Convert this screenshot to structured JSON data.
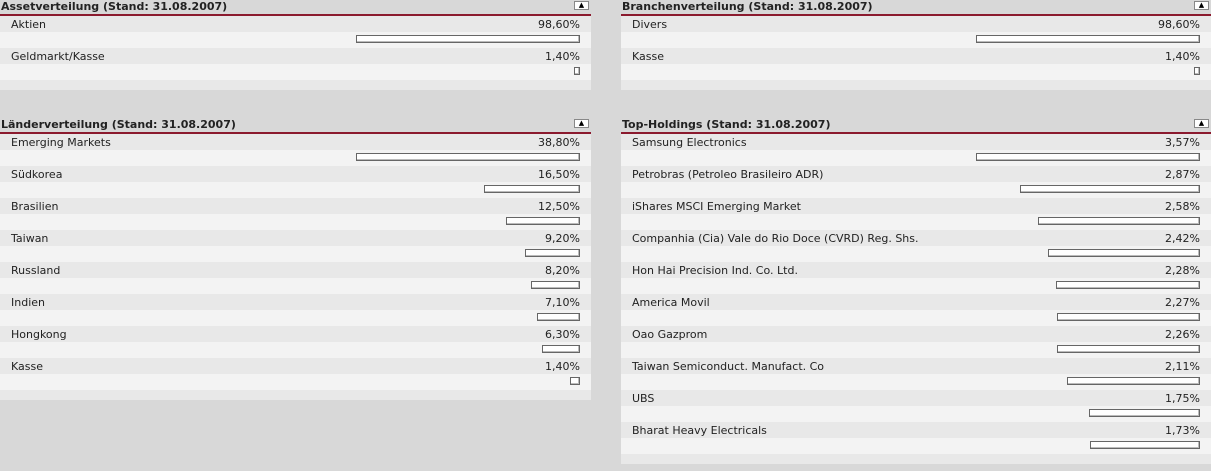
{
  "toggle_glyph": "▲",
  "panels": [
    {
      "id": "asset",
      "title": "Assetverteilung (Stand: 31.08.2007)",
      "rows": [
        {
          "label": "Aktien",
          "value": "98,60%",
          "share": 98.6
        },
        {
          "label": "Geldmarkt/Kasse",
          "value": "1,40%",
          "share": 1.4
        }
      ]
    },
    {
      "id": "branchen",
      "title": "Branchenverteilung (Stand: 31.08.2007)",
      "rows": [
        {
          "label": "Divers",
          "value": "98,60%",
          "share": 98.6
        },
        {
          "label": "Kasse",
          "value": "1,40%",
          "share": 1.4
        }
      ]
    },
    {
      "id": "laender",
      "title": "Länderverteilung (Stand: 31.08.2007)",
      "rows": [
        {
          "label": "Emerging Markets",
          "value": "38,80%",
          "share": 38.8
        },
        {
          "label": "Südkorea",
          "value": "16,50%",
          "share": 16.5
        },
        {
          "label": "Brasilien",
          "value": "12,50%",
          "share": 12.5
        },
        {
          "label": "Taiwan",
          "value": "9,20%",
          "share": 9.2
        },
        {
          "label": "Russland",
          "value": "8,20%",
          "share": 8.2
        },
        {
          "label": "Indien",
          "value": "7,10%",
          "share": 7.1
        },
        {
          "label": "Hongkong",
          "value": "6,30%",
          "share": 6.3
        },
        {
          "label": "Kasse",
          "value": "1,40%",
          "share": 1.4
        }
      ]
    },
    {
      "id": "holdings",
      "title": "Top-Holdings (Stand: 31.08.2007)",
      "rows": [
        {
          "label": "Samsung Electronics",
          "value": "3,57%",
          "share": 3.57
        },
        {
          "label": "Petrobras (Petroleo Brasileiro ADR)",
          "value": "2,87%",
          "share": 2.87
        },
        {
          "label": "iShares MSCI Emerging Market",
          "value": "2,58%",
          "share": 2.58
        },
        {
          "label": "Companhia (Cia) Vale do Rio Doce (CVRD) Reg. Shs.",
          "value": "2,42%",
          "share": 2.42
        },
        {
          "label": "Hon Hai Precision Ind. Co. Ltd.",
          "value": "2,28%",
          "share": 2.28
        },
        {
          "label": "America Movil",
          "value": "2,27%",
          "share": 2.27
        },
        {
          "label": "Oao Gazprom",
          "value": "2,26%",
          "share": 2.26
        },
        {
          "label": "Taiwan Semiconduct. Manufact. Co",
          "value": "2,11%",
          "share": 2.11
        },
        {
          "label": "UBS",
          "value": "1,75%",
          "share": 1.75
        },
        {
          "label": "Bharat Heavy Electricals",
          "value": "1,73%",
          "share": 1.73
        }
      ]
    }
  ]
}
